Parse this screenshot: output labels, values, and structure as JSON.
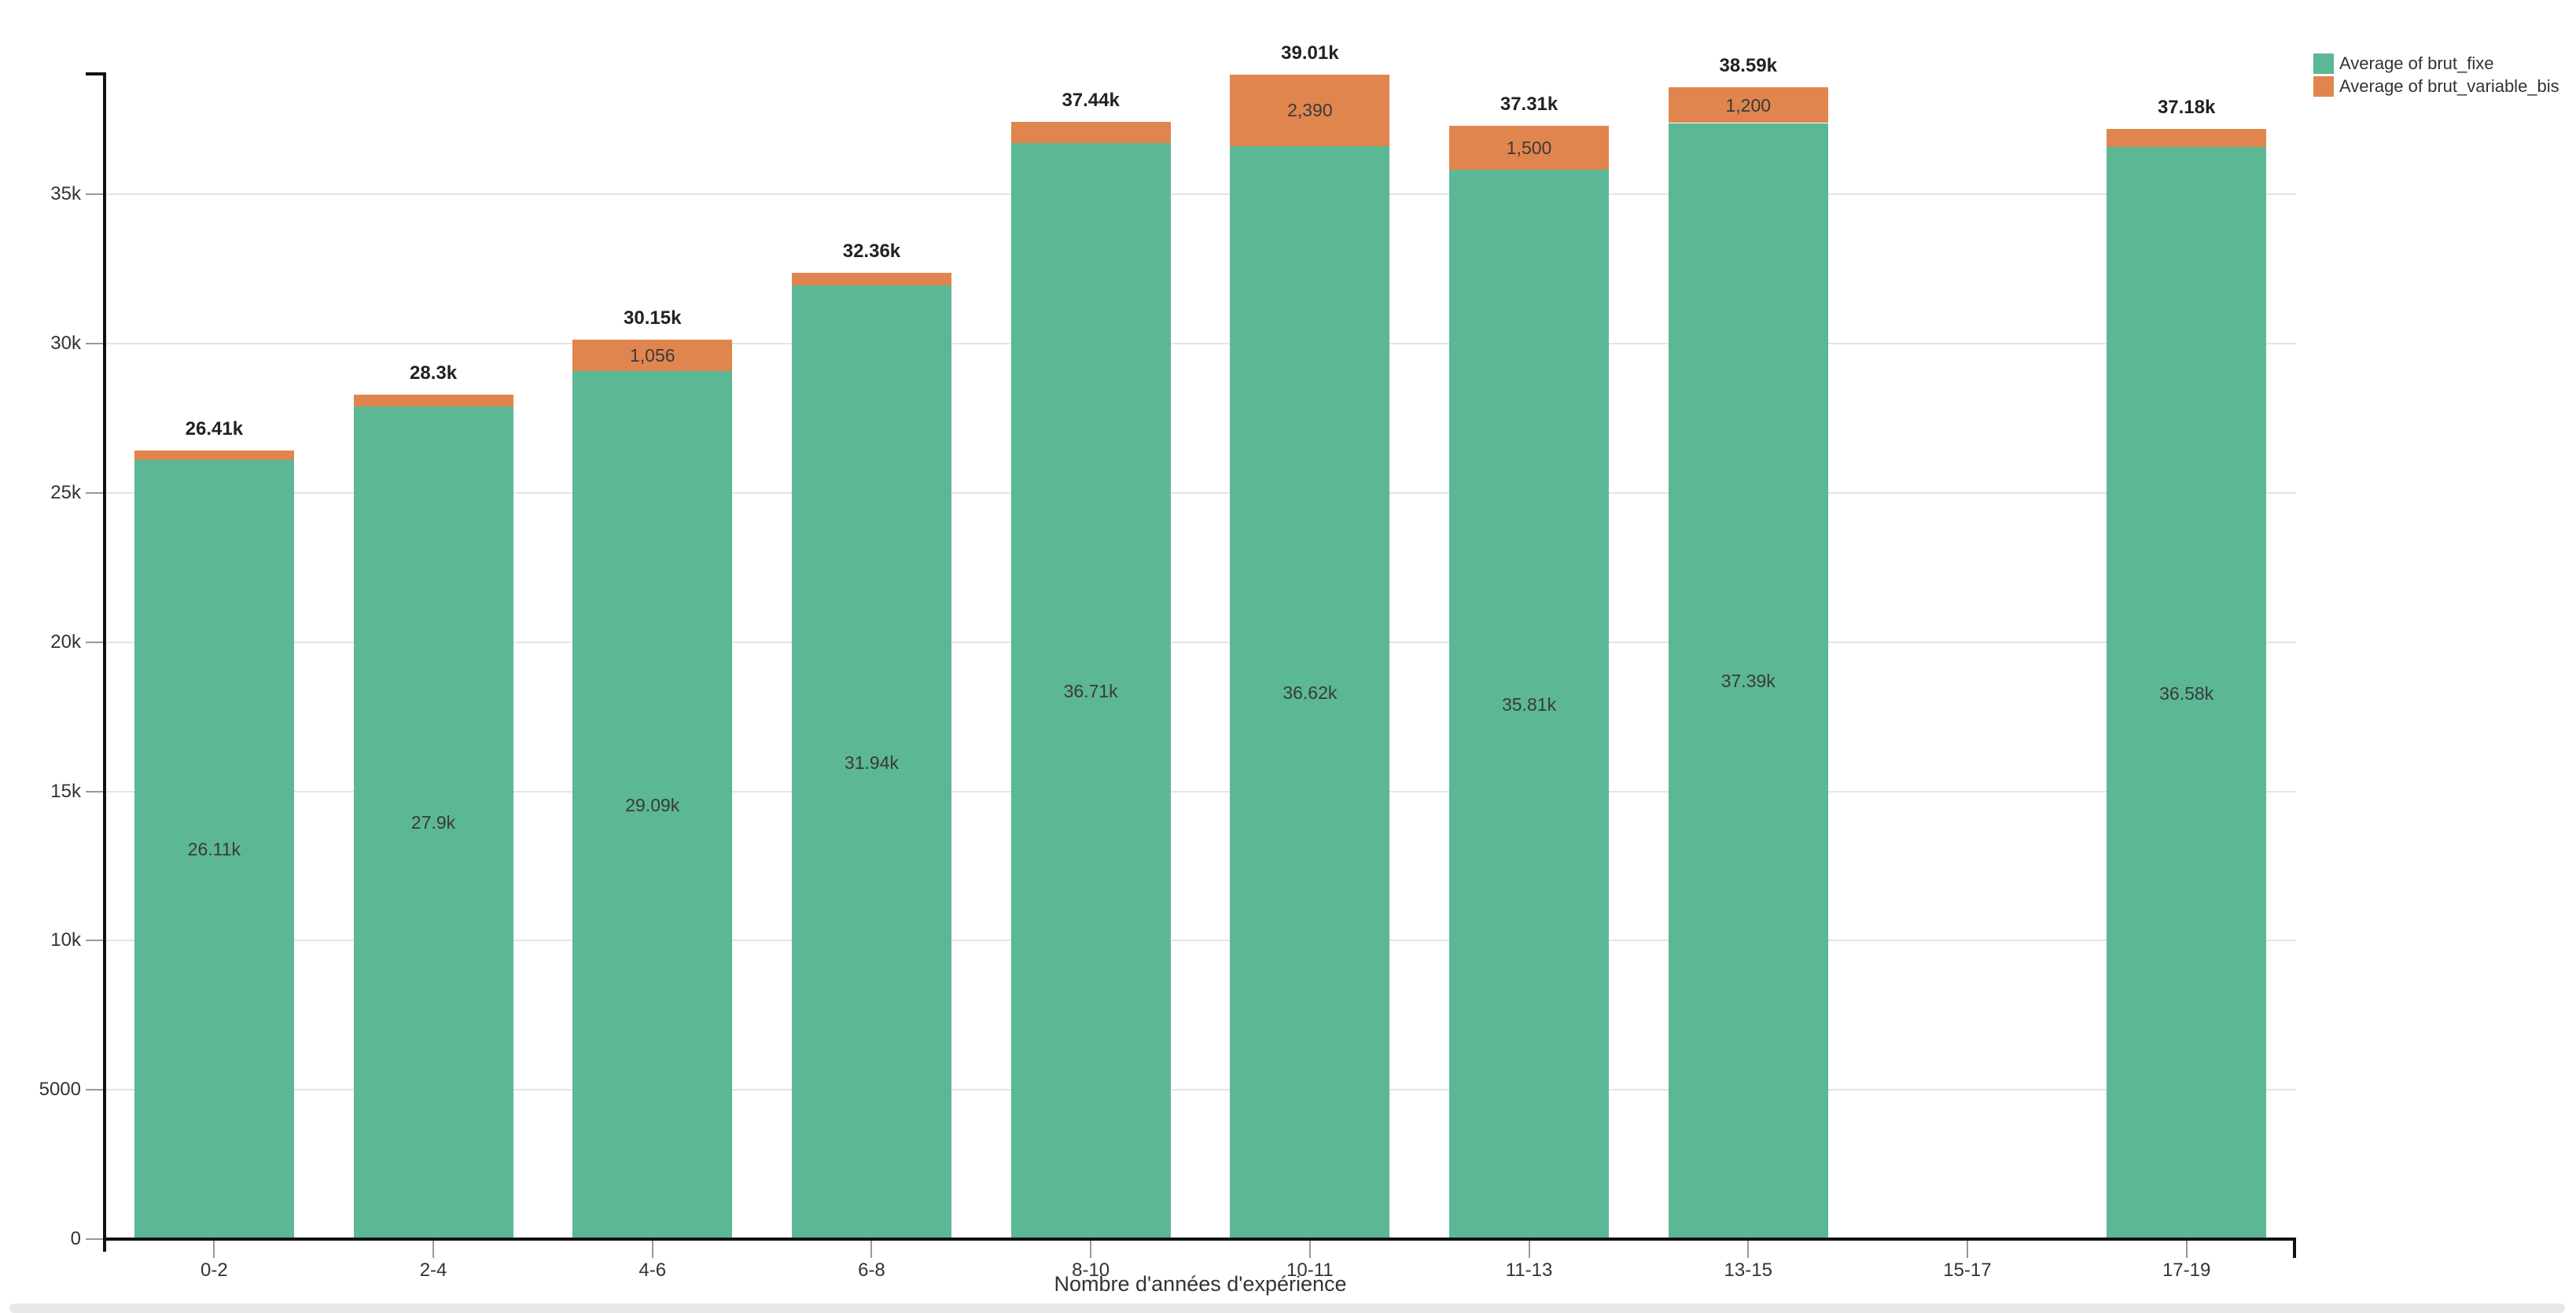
{
  "chart_data": {
    "type": "bar",
    "stacked": true,
    "title": "",
    "xlabel": "Nombre d'années d'expérience",
    "ylabel": "",
    "legend_position": "top-right",
    "grid": true,
    "ylim": [
      0,
      39300
    ],
    "categories": [
      "0-2",
      "2-4",
      "4-6",
      "6-8",
      "8-10",
      "10-11",
      "11-13",
      "13-15",
      "15-17",
      "17-19"
    ],
    "series": [
      {
        "name": "Average of brut_fixe",
        "color": "#5cb795",
        "values": [
          26110,
          27900,
          29090,
          31940,
          36710,
          36620,
          35810,
          37390,
          null,
          36580
        ],
        "labels": [
          "26.11k",
          "27.9k",
          "29.09k",
          "31.94k",
          "36.71k",
          "36.62k",
          "35.81k",
          "37.39k",
          null,
          "36.58k"
        ]
      },
      {
        "name": "Average of brut_variable_bis",
        "color": "#e1854f",
        "values": [
          300,
          400,
          1056,
          420,
          730,
          2390,
          1500,
          1200,
          null,
          600
        ],
        "labels": [
          null,
          null,
          "1,056",
          null,
          null,
          "2,390",
          "1,500",
          "1,200",
          null,
          null
        ]
      }
    ],
    "totals_labels": [
      "26.41k",
      "28.3k",
      "30.15k",
      "32.36k",
      "37.44k",
      "39.01k",
      "37.31k",
      "38.59k",
      null,
      "37.18k"
    ],
    "y_ticks": [
      {
        "label": "0",
        "value": 0
      },
      {
        "label": "5000",
        "value": 5000
      },
      {
        "label": "10k",
        "value": 10000
      },
      {
        "label": "15k",
        "value": 15000
      },
      {
        "label": "20k",
        "value": 20000
      },
      {
        "label": "25k",
        "value": 25000
      },
      {
        "label": "30k",
        "value": 30000
      },
      {
        "label": "35k",
        "value": 35000
      }
    ]
  }
}
